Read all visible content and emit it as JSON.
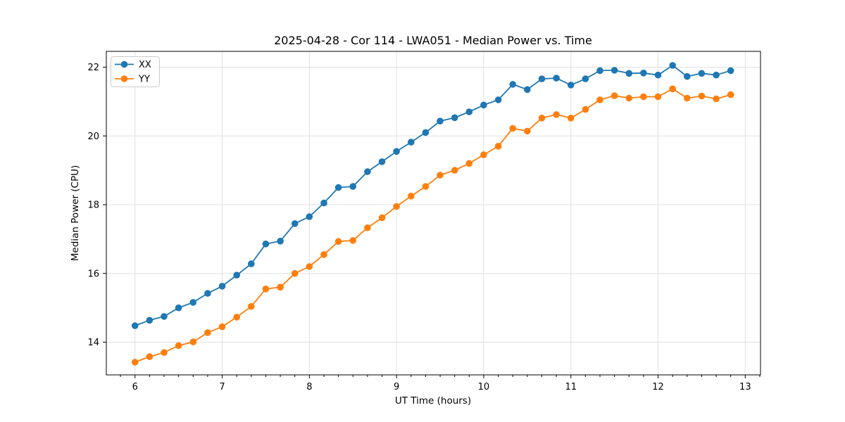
{
  "figure": {
    "background": "#ffffff"
  },
  "chart_data": {
    "type": "line",
    "title": "2025-04-28 - Cor 114 - LWA051 - Median Power vs. Time",
    "xlabel": "UT Time (hours)",
    "ylabel": "Median Power (CPU)",
    "xlim": [
      5.671,
      13.175
    ],
    "ylim": [
      13.05,
      22.46
    ],
    "xticks": [
      6,
      7,
      8,
      9,
      10,
      11,
      12,
      13
    ],
    "yticks": [
      14,
      16,
      18,
      20,
      22
    ],
    "x_minor_step": 0.1666667,
    "grid": true,
    "grid_color": "#e0e0e0",
    "spine_color": "#000000",
    "legend": {
      "position": "upper-left",
      "entries": [
        "XX",
        "YY"
      ]
    },
    "x": [
      6,
      6.1667,
      6.3333,
      6.5,
      6.6667,
      6.8333,
      7,
      7.1667,
      7.3333,
      7.5,
      7.6667,
      7.8333,
      8,
      8.1667,
      8.3333,
      8.5,
      8.6667,
      8.8333,
      9,
      9.1667,
      9.3333,
      9.5,
      9.6667,
      9.8333,
      10,
      10.1667,
      10.3333,
      10.5,
      10.6667,
      10.8333,
      11,
      11.1667,
      11.3333,
      11.5,
      11.6667,
      11.8333,
      12,
      12.1667,
      12.3333,
      12.5,
      12.6667,
      12.8333
    ],
    "series": [
      {
        "name": "XX",
        "color": "#1f77b4",
        "values": [
          14.48,
          14.64,
          14.75,
          15.0,
          15.16,
          15.42,
          15.63,
          15.95,
          16.28,
          16.86,
          16.94,
          17.45,
          17.65,
          18.05,
          18.5,
          18.53,
          18.96,
          19.25,
          19.55,
          19.82,
          20.1,
          20.43,
          20.53,
          20.7,
          20.9,
          21.05,
          21.5,
          21.35,
          21.66,
          21.68,
          21.48,
          21.66,
          21.9,
          21.91,
          21.82,
          21.83,
          21.77,
          22.05,
          21.73,
          21.82,
          21.77,
          21.9
        ]
      },
      {
        "name": "YY",
        "color": "#ff7f0e",
        "values": [
          13.42,
          13.58,
          13.7,
          13.9,
          14.01,
          14.28,
          14.45,
          14.73,
          15.04,
          15.55,
          15.6,
          16.0,
          16.2,
          16.55,
          16.93,
          16.96,
          17.33,
          17.62,
          17.95,
          18.25,
          18.53,
          18.86,
          19.0,
          19.2,
          19.45,
          19.7,
          20.22,
          20.14,
          20.52,
          20.62,
          20.52,
          20.77,
          21.05,
          21.17,
          21.1,
          21.14,
          21.14,
          21.37,
          21.1,
          21.16,
          21.08,
          21.2
        ]
      }
    ]
  }
}
